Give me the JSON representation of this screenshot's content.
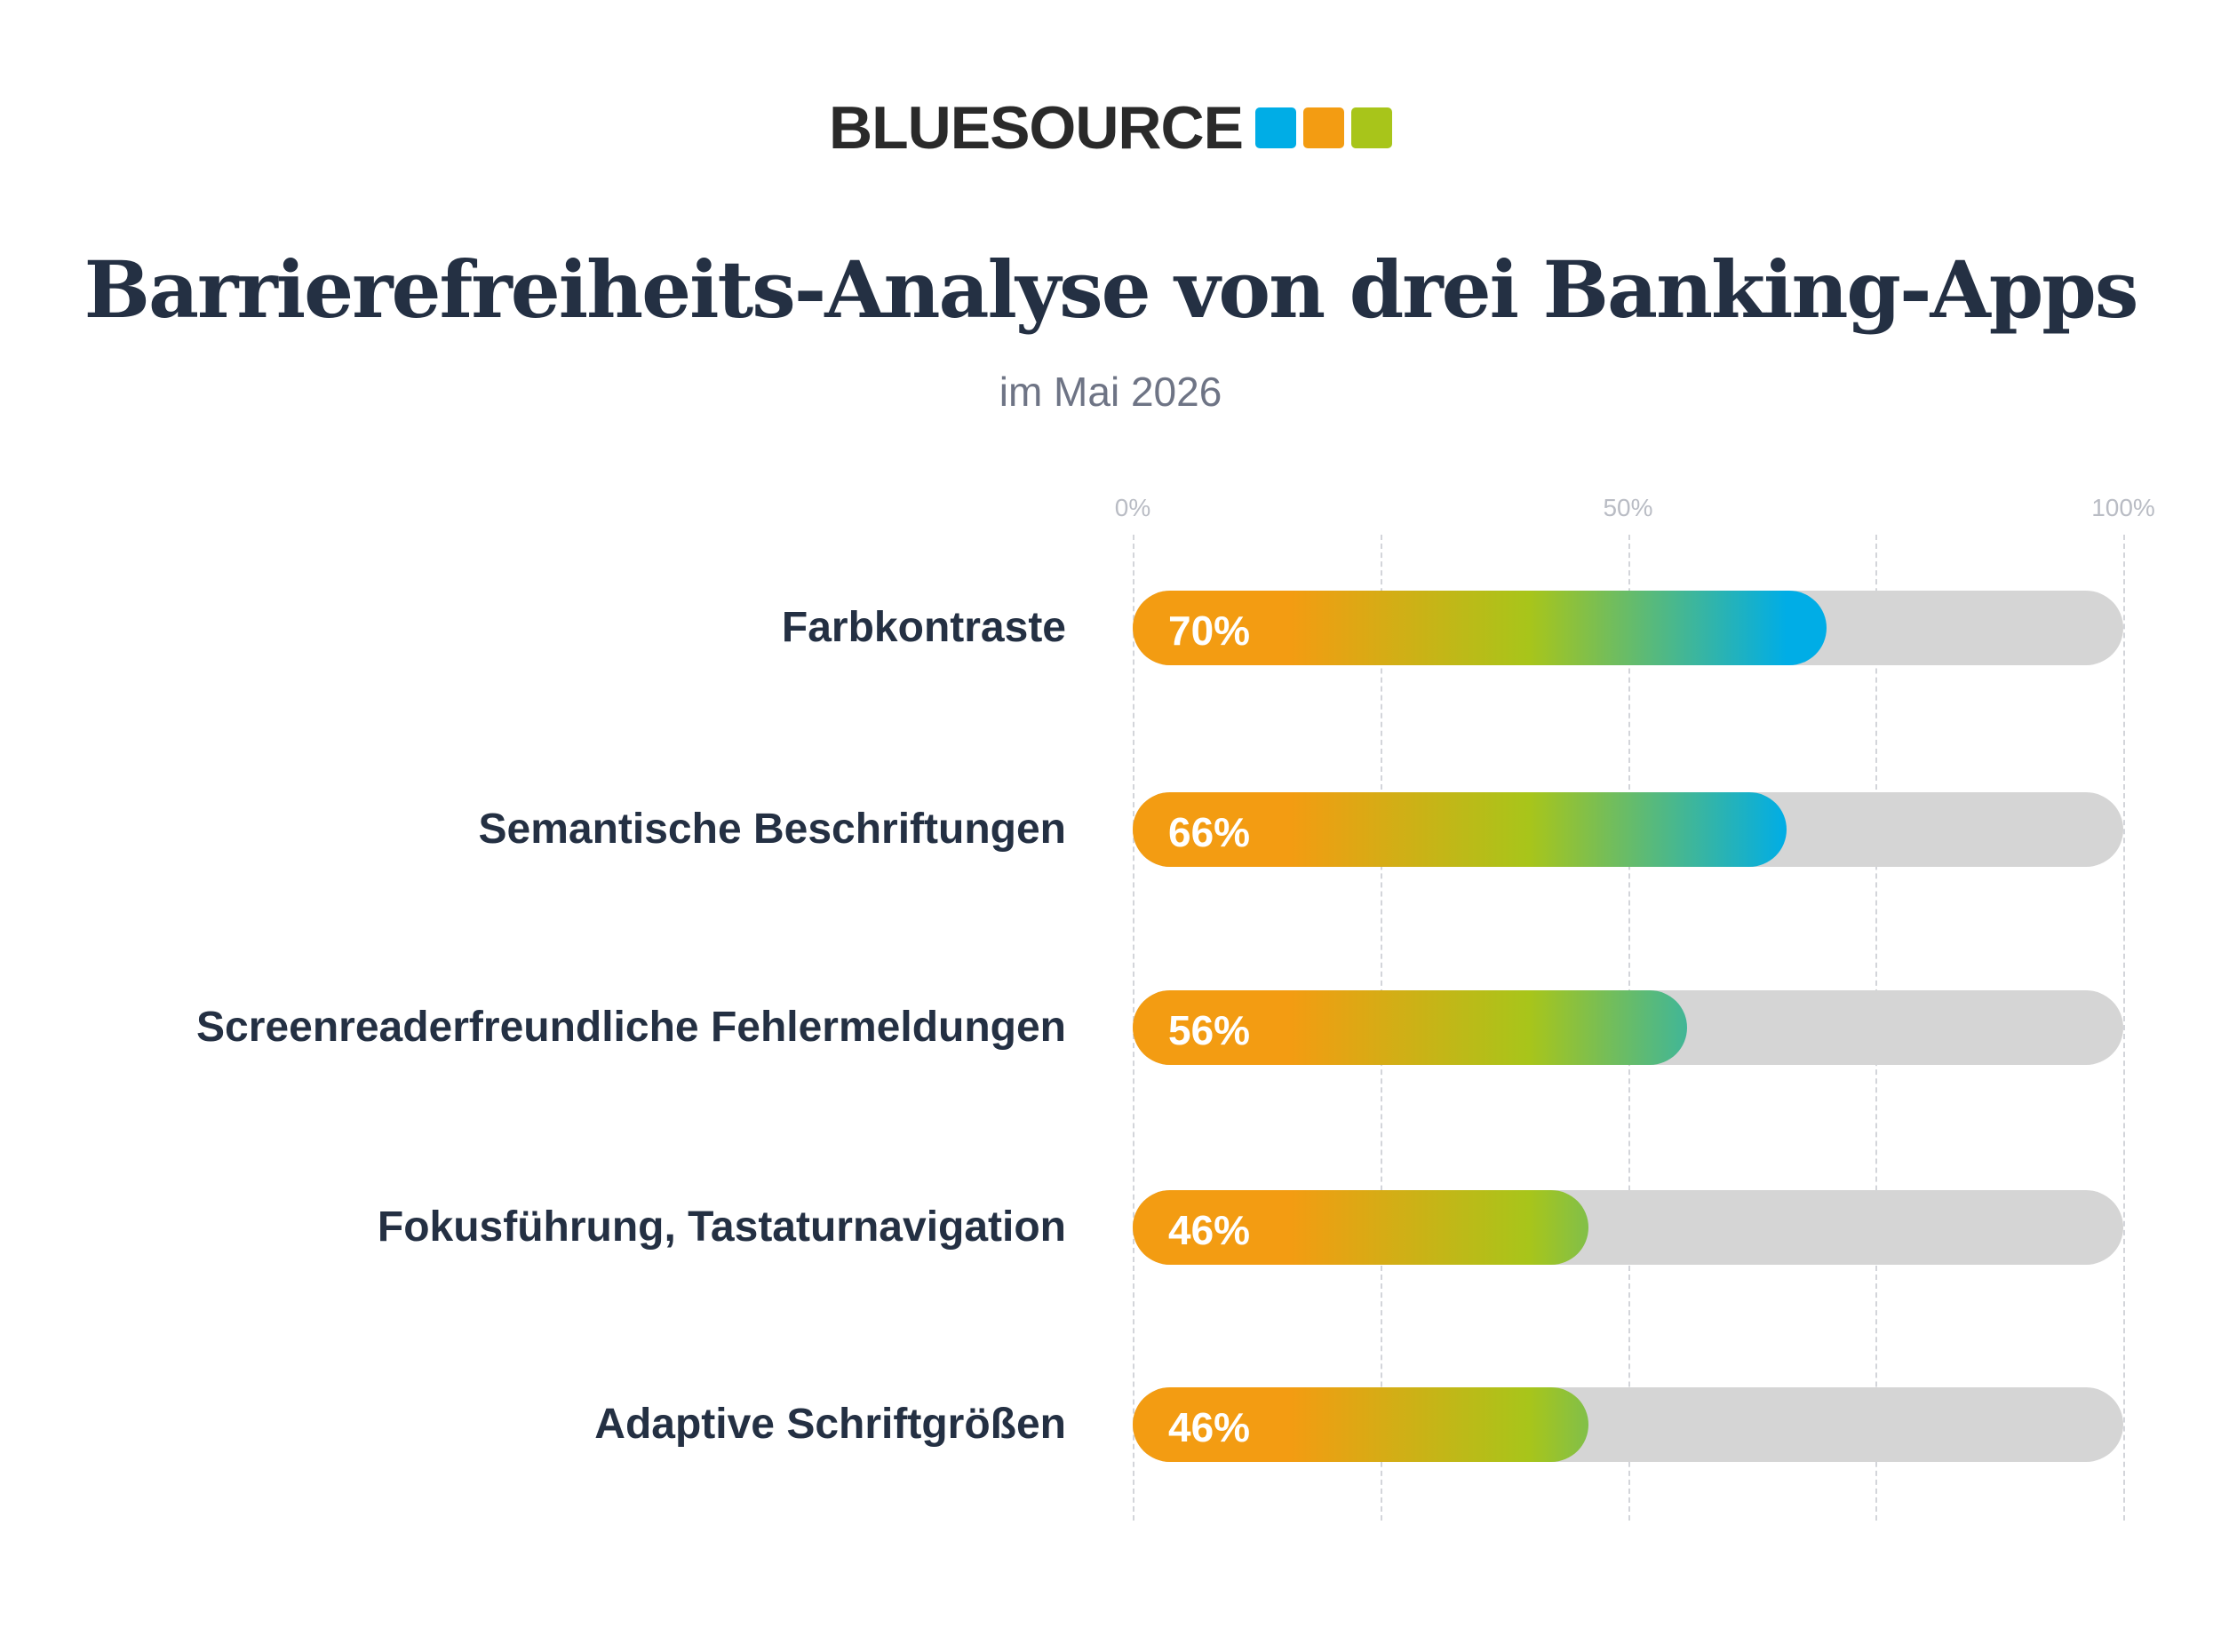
{
  "logo": {
    "text": "BLUESOURCE",
    "square_colors": [
      "#00ade6",
      "#f39c12",
      "#a8c51a"
    ]
  },
  "chart_data": {
    "type": "bar",
    "orientation": "horizontal",
    "title": "Barrierefreiheits-Analyse von drei Banking-Apps",
    "subtitle": "im Mai 2026",
    "categories": [
      "Farbkontraste",
      "Semantische Beschriftungen",
      "Screenreaderfreundliche Fehlermeldungen",
      "Fokusführung, Tastaturnavigation",
      "Adaptive Schriftgrößen"
    ],
    "values": [
      70,
      66,
      56,
      46,
      46
    ],
    "value_labels": [
      "70%",
      "66%",
      "56%",
      "46%",
      "46%"
    ],
    "xlim": [
      0,
      100
    ],
    "x_ticks": [
      0,
      50,
      100
    ],
    "x_tick_labels": [
      "0%",
      "50%",
      "100%"
    ],
    "gridlines": [
      0,
      25,
      50,
      75,
      100
    ],
    "grid": true,
    "colors": {
      "track": "#d5d5d5",
      "gradient": [
        "#f39c12",
        "#a8c51a",
        "#00ade6"
      ]
    }
  }
}
